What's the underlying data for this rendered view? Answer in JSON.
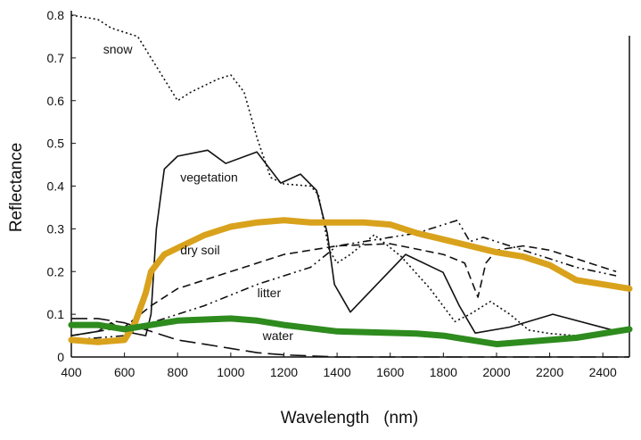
{
  "chart_data": {
    "type": "line",
    "title": "",
    "xlabel": "Wavelength   (nm)",
    "ylabel": "Reflectance",
    "xlim": [
      400,
      2500
    ],
    "ylim": [
      0,
      0.8
    ],
    "xticks": [
      400,
      600,
      800,
      1000,
      1200,
      1400,
      1600,
      1800,
      2000,
      2200,
      2400
    ],
    "yticks": [
      0,
      0.1,
      0.2,
      0.3,
      0.4,
      0.5,
      0.6,
      0.7,
      0.8
    ],
    "grid": false,
    "series": [
      {
        "name": "snow",
        "style": "dotted",
        "color": "#111111",
        "x": [
          400,
          500,
          550,
          650,
          750,
          800,
          850,
          950,
          1000,
          1050,
          1100,
          1150,
          1200,
          1300,
          1330,
          1370,
          1400,
          1450,
          1540,
          1640,
          1750,
          1843,
          1900,
          1977,
          2050,
          2121,
          2200,
          2300,
          2450
        ],
        "y": [
          0.8,
          0.79,
          0.77,
          0.75,
          0.65,
          0.6,
          0.62,
          0.65,
          0.66,
          0.62,
          0.51,
          0.42,
          0.405,
          0.4,
          0.38,
          0.25,
          0.22,
          0.24,
          0.286,
          0.236,
          0.16,
          0.083,
          0.1,
          0.13,
          0.1,
          0.063,
          0.055,
          0.05,
          0.055
        ]
      },
      {
        "name": "vegetation",
        "style": "solid",
        "color": "#111111",
        "x": [
          400,
          500,
          550,
          600,
          680,
          700,
          720,
          750,
          800,
          913,
          981,
          1098,
          1188,
          1262,
          1323,
          1363,
          1390,
          1450,
          1550,
          1658,
          1799,
          1860,
          1920,
          2050,
          2212,
          2436
        ],
        "y": [
          0.05,
          0.06,
          0.08,
          0.06,
          0.05,
          0.1,
          0.3,
          0.44,
          0.47,
          0.484,
          0.453,
          0.48,
          0.407,
          0.428,
          0.39,
          0.29,
          0.17,
          0.105,
          0.17,
          0.24,
          0.198,
          0.12,
          0.056,
          0.07,
          0.1,
          0.063
        ]
      },
      {
        "name": "dry soil",
        "style": "dashed",
        "color": "#111111",
        "x": [
          400,
          600,
          700,
          800,
          1000,
          1200,
          1400,
          1600,
          1800,
          1880,
          1930,
          1960,
          2000,
          2100,
          2200,
          2300,
          2450
        ],
        "y": [
          0.05,
          0.07,
          0.12,
          0.16,
          0.2,
          0.24,
          0.26,
          0.265,
          0.24,
          0.22,
          0.14,
          0.22,
          0.25,
          0.26,
          0.25,
          0.23,
          0.2
        ]
      },
      {
        "name": "litter",
        "style": "dashdot",
        "color": "#111111",
        "x": [
          400,
          600,
          700,
          900,
          1100,
          1300,
          1400,
          1600,
          1700,
          1853,
          1900,
          1950,
          2100,
          2200,
          2300,
          2450
        ],
        "y": [
          0.04,
          0.05,
          0.08,
          0.12,
          0.17,
          0.21,
          0.26,
          0.28,
          0.29,
          0.32,
          0.27,
          0.28,
          0.25,
          0.23,
          0.21,
          0.19
        ]
      },
      {
        "name": "water",
        "style": "longdash",
        "color": "#111111",
        "x": [
          400,
          500,
          600,
          700,
          800,
          900,
          1000,
          1100,
          1200,
          1400,
          1600,
          2000,
          2500
        ],
        "y": [
          0.09,
          0.09,
          0.08,
          0.06,
          0.04,
          0.03,
          0.02,
          0.01,
          0.005,
          0,
          0,
          0,
          0
        ]
      },
      {
        "style": "thick",
        "color": "#d9a21c",
        "x": [
          400,
          500,
          600,
          640,
          680,
          700,
          750,
          800,
          900,
          1000,
          1100,
          1200,
          1300,
          1500,
          1600,
          1700,
          1800,
          1900,
          2000,
          2100,
          2200,
          2300,
          2400,
          2500
        ],
        "y": [
          0.04,
          0.035,
          0.04,
          0.08,
          0.15,
          0.2,
          0.24,
          0.255,
          0.285,
          0.305,
          0.315,
          0.32,
          0.315,
          0.315,
          0.31,
          0.29,
          0.275,
          0.26,
          0.245,
          0.235,
          0.215,
          0.18,
          0.17,
          0.16
        ]
      },
      {
        "style": "thick",
        "color": "#2e8b1e",
        "x": [
          400,
          500,
          600,
          700,
          800,
          1000,
          1100,
          1200,
          1400,
          1700,
          1800,
          2000,
          2100,
          2300,
          2450,
          2500
        ],
        "y": [
          0.075,
          0.075,
          0.065,
          0.075,
          0.085,
          0.09,
          0.085,
          0.075,
          0.06,
          0.055,
          0.05,
          0.03,
          0.035,
          0.045,
          0.06,
          0.065
        ]
      }
    ],
    "annotations": [
      {
        "text": "snow",
        "x": 520,
        "y": 0.71
      },
      {
        "text": "vegetation",
        "x": 810,
        "y": 0.41
      },
      {
        "text": "dry soil",
        "x": 810,
        "y": 0.24
      },
      {
        "text": "litter",
        "x": 1100,
        "y": 0.14
      },
      {
        "text": "water",
        "x": 1120,
        "y": 0.04
      }
    ]
  }
}
